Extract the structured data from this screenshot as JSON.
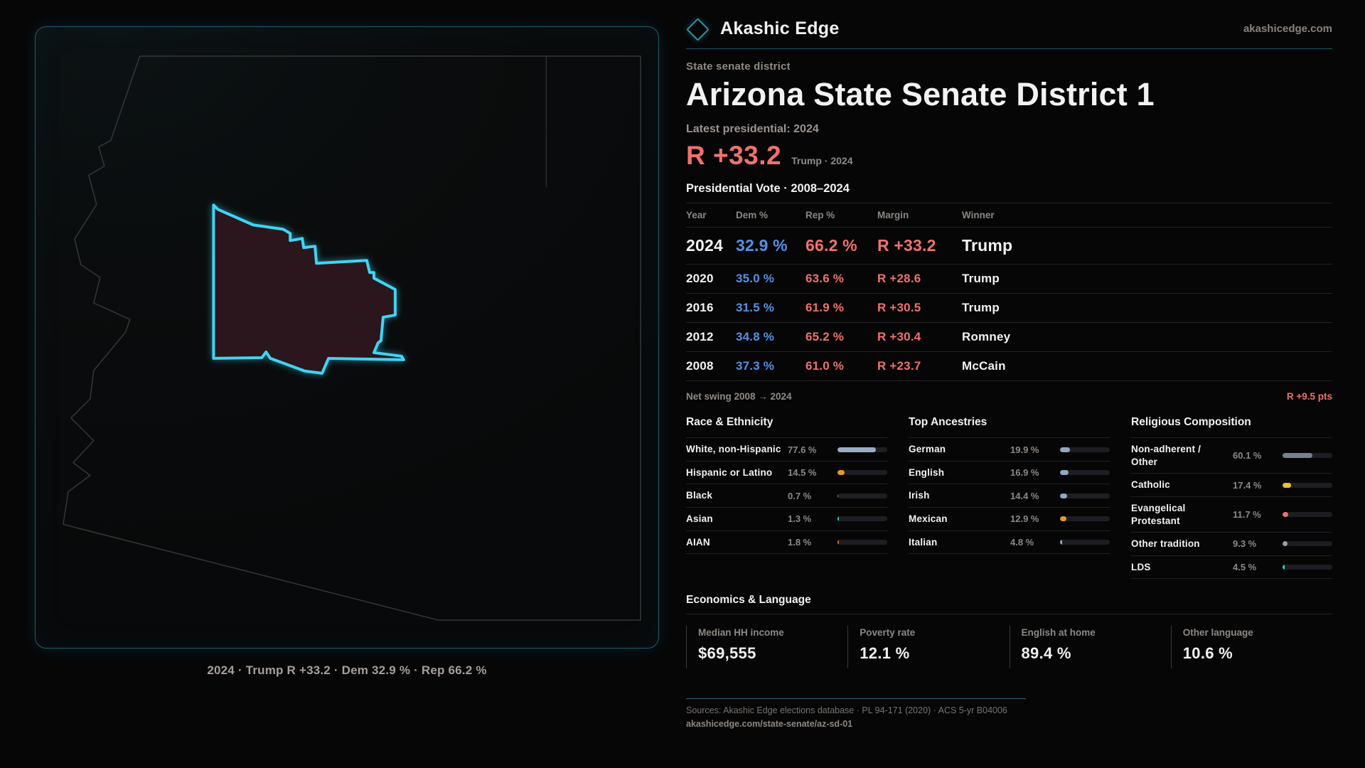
{
  "brand": {
    "name": "Akashic Edge",
    "site": "akashicedge.com"
  },
  "page": {
    "kicker": "State senate district",
    "title": "Arizona State Senate District 1",
    "latest_label": "Latest presidential: 2024",
    "headline_margin": "R +33.2",
    "headline_context": "Trump · 2024"
  },
  "map": {
    "caption": "2024 · Trump R +33.2 · Dem 32.9 % · Rep 66.2 %"
  },
  "colors": {
    "dem_blue": "#5691e6",
    "rep_red": "#f0726d",
    "district_cyan": "#41d4f4",
    "panel_border_teal": "#1d5f6e"
  },
  "vote_table": {
    "title": "Presidential Vote · 2008–2024",
    "columns": [
      "Year",
      "Dem %",
      "Rep %",
      "Margin",
      "Winner"
    ],
    "rows": [
      {
        "year": "2024",
        "dem": "32.9 %",
        "rep": "66.2 %",
        "margin": "R +33.2",
        "winner": "Trump",
        "highlight": true
      },
      {
        "year": "2020",
        "dem": "35.0 %",
        "rep": "63.6 %",
        "margin": "R +28.6",
        "winner": "Trump",
        "highlight": false
      },
      {
        "year": "2016",
        "dem": "31.5 %",
        "rep": "61.9 %",
        "margin": "R +30.5",
        "winner": "Trump",
        "highlight": false
      },
      {
        "year": "2012",
        "dem": "34.8 %",
        "rep": "65.2 %",
        "margin": "R +30.4",
        "winner": "Romney",
        "highlight": false
      },
      {
        "year": "2008",
        "dem": "37.3 %",
        "rep": "61.0 %",
        "margin": "R +23.7",
        "winner": "McCain",
        "highlight": false
      }
    ],
    "net_swing_label": "Net swing 2008 → 2024",
    "net_swing_value": "R +9.5 pts"
  },
  "demographics": {
    "race": {
      "title": "Race & Ethnicity",
      "rows": [
        {
          "label": "White, non-Hispanic",
          "value": "77.6 %",
          "pct": 77.6,
          "color": "#9aabc5"
        },
        {
          "label": "Hispanic or Latino",
          "value": "14.5 %",
          "pct": 14.5,
          "color": "#e39a2b"
        },
        {
          "label": "Black",
          "value": "0.7 %",
          "pct": 0.7,
          "color": "#8b94a3"
        },
        {
          "label": "Asian",
          "value": "1.3 %",
          "pct": 1.3,
          "color": "#2fd1b2"
        },
        {
          "label": "AIAN",
          "value": "1.8 %",
          "pct": 1.8,
          "color": "#cf6b1f"
        }
      ]
    },
    "ancestries": {
      "title": "Top Ancestries",
      "rows": [
        {
          "label": "German",
          "value": "19.9 %",
          "pct": 19.9,
          "color": "#93a6c0"
        },
        {
          "label": "English",
          "value": "16.9 %",
          "pct": 16.9,
          "color": "#93a6c0"
        },
        {
          "label": "Irish",
          "value": "14.4 %",
          "pct": 14.4,
          "color": "#93a6c0"
        },
        {
          "label": "Mexican",
          "value": "12.9 %",
          "pct": 12.9,
          "color": "#e39a2b"
        },
        {
          "label": "Italian",
          "value": "4.8 %",
          "pct": 4.8,
          "color": "#93a6c0"
        }
      ]
    },
    "religion": {
      "title": "Religious Composition",
      "rows": [
        {
          "label": "Non-adherent / Other",
          "value": "60.1 %",
          "pct": 60.1,
          "color": "#79818f"
        },
        {
          "label": "Catholic",
          "value": "17.4 %",
          "pct": 17.4,
          "color": "#e5c138"
        },
        {
          "label": "Evangelical Protestant",
          "value": "11.7 %",
          "pct": 11.7,
          "color": "#e4736e"
        },
        {
          "label": "Other tradition",
          "value": "9.3 %",
          "pct": 9.3,
          "color": "#98a0aa"
        },
        {
          "label": "LDS",
          "value": "4.5 %",
          "pct": 4.5,
          "color": "#2cc9c4"
        }
      ]
    }
  },
  "economics": {
    "title": "Economics & Language",
    "stats": [
      {
        "label": "Median HH income",
        "value": "$69,555"
      },
      {
        "label": "Poverty rate",
        "value": "12.1 %"
      },
      {
        "label": "English at home",
        "value": "89.4 %"
      },
      {
        "label": "Other language",
        "value": "10.6 %"
      }
    ]
  },
  "footer": {
    "sources": "Sources: Akashic Edge elections database · PL 94-171 (2020) · ACS 5-yr B04006",
    "permalink": "akashicedge.com/state-senate/az-sd-01"
  }
}
